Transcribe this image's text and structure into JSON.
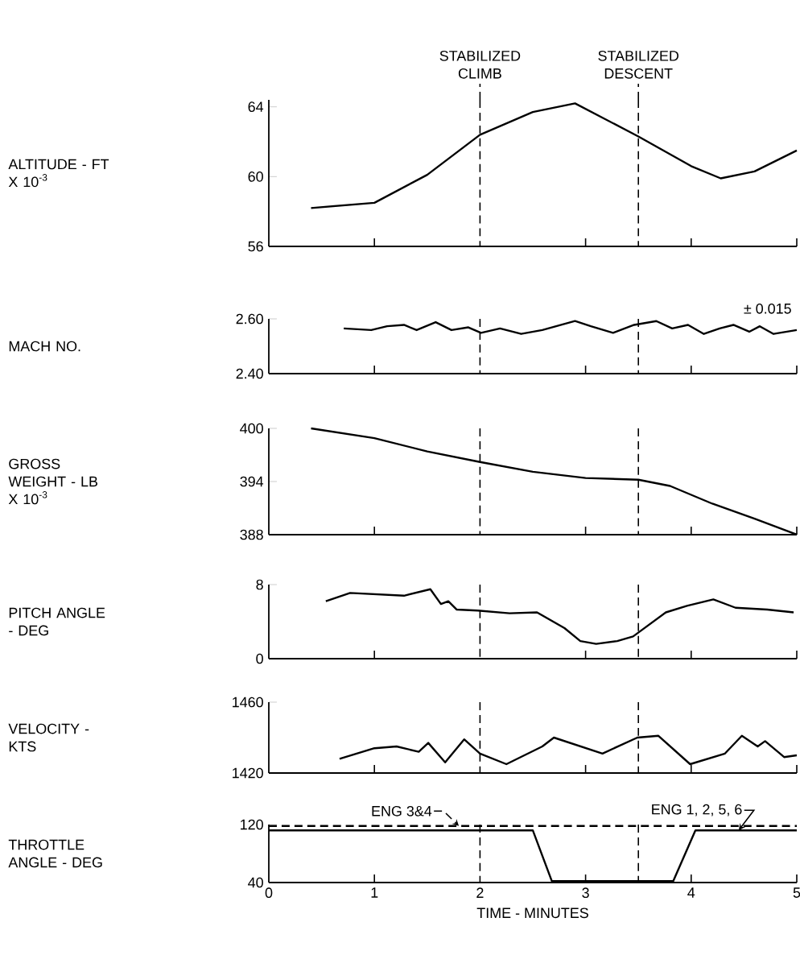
{
  "chart_data": [
    {
      "type": "line",
      "ylabel": "ALTITUDE - FT X 10$^{-3}$",
      "x": [
        0.4,
        1.0,
        1.5,
        2.0,
        2.5,
        2.9,
        3.5,
        4.0,
        4.28,
        4.6,
        5.0
      ],
      "values": [
        58.2,
        58.5,
        60.1,
        62.4,
        63.7,
        64.2,
        62.3,
        60.6,
        59.9,
        60.3,
        61.5
      ],
      "color": "#000000",
      "xlim": [
        0,
        5
      ],
      "ylim": [
        56,
        64.4
      ],
      "xticks": [
        0,
        1,
        2,
        3,
        4,
        5
      ],
      "yticks": [
        56,
        60,
        64
      ],
      "tick_labels": "y",
      "grid": false,
      "ref_lines": [
        {
          "axis": "x",
          "value": 2,
          "label": "STABILIZED CLIMB",
          "line_style": "dashed"
        },
        {
          "axis": "x",
          "value": 3.5,
          "label": "STABILIZED DESCENT",
          "line_style": "dashed"
        }
      ]
    },
    {
      "type": "line",
      "ylabel": "MACH NO.",
      "annotations": [
        "± 0.015"
      ],
      "x": [
        0.71,
        0.97,
        1.12,
        1.28,
        1.4,
        1.58,
        1.73,
        1.89,
        2.01,
        2.19,
        2.39,
        2.59,
        2.9,
        3.05,
        3.26,
        3.46,
        3.67,
        3.82,
        3.97,
        4.12,
        4.27,
        4.4,
        4.55,
        4.65,
        4.78,
        5.0
      ],
      "values": [
        2.565,
        2.559,
        2.573,
        2.578,
        2.559,
        2.588,
        2.559,
        2.569,
        2.549,
        2.565,
        2.545,
        2.559,
        2.592,
        2.573,
        2.549,
        2.578,
        2.592,
        2.565,
        2.578,
        2.545,
        2.565,
        2.578,
        2.553,
        2.573,
        2.545,
        2.559
      ],
      "color": "#000000",
      "xlim": [
        0,
        5
      ],
      "ylim": [
        2.4,
        2.6
      ],
      "xticks": [
        0,
        1,
        2,
        3,
        4,
        5
      ],
      "yticks": [
        {
          "value": 2.4,
          "label": "2.40"
        },
        {
          "value": 2.6,
          "label": "2.60"
        }
      ],
      "tick_labels": "y",
      "grid": false,
      "ref_lines": [
        {
          "axis": "x",
          "value": 2,
          "line_style": "dashed"
        },
        {
          "axis": "x",
          "value": 3.5,
          "line_style": "dashed"
        }
      ]
    },
    {
      "type": "line",
      "ylabel": "GROSS WEIGHT - LB X 10$^{-3}$",
      "x": [
        0.4,
        1.0,
        1.5,
        2.0,
        2.5,
        3.0,
        3.5,
        3.8,
        4.2,
        4.6,
        5.0
      ],
      "values": [
        400,
        398.9,
        397.4,
        396.2,
        395.1,
        394.4,
        394.2,
        393.5,
        391.5,
        389.8,
        388
      ],
      "color": "#000000",
      "xlim": [
        0,
        5
      ],
      "ylim": [
        388,
        400
      ],
      "xticks": [
        0,
        1,
        2,
        3,
        4,
        5
      ],
      "yticks": [
        388,
        394,
        400
      ],
      "tick_labels": "y",
      "grid": false,
      "ref_lines": [
        {
          "axis": "x",
          "value": 2,
          "line_style": "dashed"
        },
        {
          "axis": "x",
          "value": 3.5,
          "line_style": "dashed"
        }
      ]
    },
    {
      "type": "line",
      "ylabel": "PITCH ANGLE - DEG",
      "x": [
        0.54,
        0.77,
        1.28,
        1.53,
        1.63,
        1.7,
        1.78,
        1.98,
        2.28,
        2.54,
        2.8,
        2.95,
        3.1,
        3.3,
        3.45,
        3.76,
        3.96,
        4.21,
        4.42,
        4.72,
        4.97
      ],
      "values": [
        6.2,
        7.1,
        6.8,
        7.5,
        5.9,
        6.2,
        5.3,
        5.2,
        4.9,
        5.0,
        3.3,
        1.9,
        1.6,
        1.9,
        2.4,
        5.0,
        5.7,
        6.4,
        5.5,
        5.3,
        5.0
      ],
      "color": "#000000",
      "xlim": [
        0,
        5
      ],
      "ylim": [
        0,
        8
      ],
      "xticks": [
        0,
        1,
        2,
        3,
        4,
        5
      ],
      "yticks": [
        0,
        8
      ],
      "tick_labels": "y",
      "grid": false,
      "ref_lines": [
        {
          "axis": "x",
          "value": 2,
          "line_style": "dashed"
        },
        {
          "axis": "x",
          "value": 3.5,
          "line_style": "dashed"
        }
      ]
    },
    {
      "type": "line",
      "ylabel": "VELOCITY - KTS",
      "x": [
        0.67,
        1.0,
        1.21,
        1.42,
        1.51,
        1.67,
        1.85,
        2.0,
        2.25,
        2.59,
        2.7,
        3.16,
        3.49,
        3.69,
        3.99,
        4.32,
        4.48,
        4.63,
        4.7,
        4.88,
        5.0
      ],
      "values": [
        1428,
        1434,
        1435,
        1432,
        1437,
        1426,
        1439,
        1431,
        1425,
        1435,
        1440,
        1431,
        1440,
        1441,
        1425,
        1431,
        1441,
        1435,
        1438,
        1429,
        1430
      ],
      "color": "#000000",
      "xlim": [
        0,
        5
      ],
      "ylim": [
        1420,
        1460
      ],
      "xticks": [
        0,
        1,
        2,
        3,
        4,
        5
      ],
      "yticks": [
        1420,
        1460
      ],
      "tick_labels": "y",
      "grid": false,
      "ref_lines": [
        {
          "axis": "x",
          "value": 2,
          "line_style": "dashed"
        },
        {
          "axis": "x",
          "value": 3.5,
          "line_style": "dashed"
        }
      ]
    },
    {
      "type": "line",
      "ylabel": "THROTTLE ANGLE - DEG",
      "xlabel": "TIME - MINUTES",
      "series": [
        {
          "name": "ENG 3&4",
          "color": "#000000",
          "line_style": "dashed",
          "x": [
            0,
            5
          ],
          "values": [
            118,
            118
          ]
        },
        {
          "name": "ENG 1, 2, 5, 6",
          "color": "#000000",
          "line_style": "solid",
          "x": [
            0,
            2.5,
            2.68,
            3.83,
            4.04,
            5
          ],
          "values": [
            112,
            112,
            42,
            42,
            112,
            112
          ]
        }
      ],
      "xlim": [
        0,
        5
      ],
      "ylim": [
        40,
        120
      ],
      "xticks": [
        0,
        1,
        2,
        3,
        4,
        5
      ],
      "yticks": [
        40,
        120
      ],
      "grid": false,
      "legend": "top",
      "ref_lines": [
        {
          "axis": "x",
          "value": 2,
          "line_style": "dashed"
        },
        {
          "axis": "x",
          "value": 3.5,
          "line_style": "dashed"
        }
      ]
    }
  ]
}
